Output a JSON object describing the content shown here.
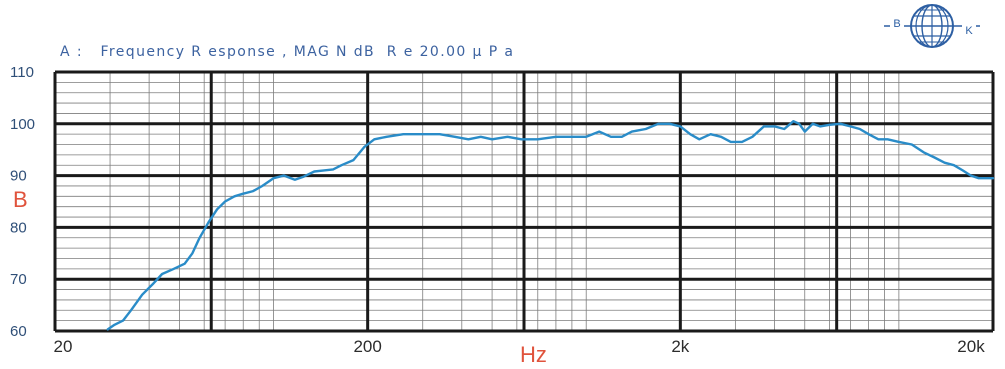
{
  "header": {
    "title": "A :   Frequency R esponse , MAG N dB  R e 20.00 µ P a"
  },
  "logo": {
    "left_letter": "B",
    "right_letter": "K"
  },
  "colors": {
    "curve": "#2a8cc8",
    "grid": "#7d7d7d",
    "major_grid": "#1a1a1a",
    "unit_label": "#e0533c",
    "title": "#3c62a0",
    "logo": "#2d5fa3"
  },
  "chart_data": {
    "type": "line",
    "title": "A :   Frequency R esponse , MAG N dB  R e 20.00 µ P a",
    "xlabel": "Hz",
    "ylabel": "B",
    "x_scale": "log",
    "xlim": [
      20,
      20000
    ],
    "ylim": [
      60,
      110
    ],
    "x_ticks": [
      20,
      200,
      2000,
      20000
    ],
    "x_tick_labels": [
      "20",
      "200",
      "2k",
      "20k"
    ],
    "y_ticks": [
      60,
      70,
      80,
      90,
      100,
      110
    ],
    "y_tick_labels": [
      "60",
      "70",
      "80",
      "90",
      "100",
      "110"
    ],
    "grid": true,
    "series": [
      {
        "x": [
          29.5,
          31,
          33,
          35,
          38,
          41,
          44,
          48,
          52,
          55,
          58,
          62,
          66,
          70,
          75,
          80,
          86,
          92,
          100,
          108,
          117,
          125,
          135,
          145,
          155,
          165,
          180,
          195,
          210,
          230,
          260,
          300,
          340,
          380,
          420,
          460,
          500,
          560,
          620,
          700,
          800,
          900,
          1000,
          1100,
          1200,
          1300,
          1400,
          1550,
          1700,
          1850,
          2000,
          2150,
          2300,
          2500,
          2700,
          2900,
          3150,
          3400,
          3700,
          4000,
          4300,
          4600,
          4800,
          5000,
          5300,
          5600,
          6000,
          6500,
          7000,
          7500,
          8000,
          8600,
          9200,
          10000,
          11000,
          12000,
          13000,
          14000,
          15000,
          16000,
          17000,
          18000,
          19000,
          20000
        ],
        "y": [
          60.3,
          61.2,
          62.0,
          64.0,
          67.0,
          69.0,
          71.0,
          72.0,
          73.0,
          75.0,
          78.0,
          81.0,
          83.5,
          85.0,
          86.0,
          86.5,
          87.0,
          88.0,
          89.5,
          90.0,
          89.2,
          89.8,
          90.8,
          91.0,
          91.2,
          92.0,
          93.0,
          95.5,
          97.0,
          97.5,
          98.0,
          98.0,
          98.0,
          97.5,
          97.0,
          97.5,
          97.0,
          97.5,
          97.0,
          97.0,
          97.5,
          97.5,
          97.5,
          98.5,
          97.5,
          97.5,
          98.5,
          99.0,
          100.0,
          100.0,
          99.5,
          98.0,
          97.0,
          98.0,
          97.5,
          96.5,
          96.5,
          97.5,
          99.5,
          99.5,
          99.0,
          100.5,
          100.0,
          98.5,
          100.0,
          99.5,
          99.8,
          100.0,
          99.5,
          99.0,
          98.0,
          97.0,
          97.0,
          96.5,
          96.0,
          94.5,
          93.5,
          92.5,
          92.0,
          91.0,
          90.0,
          89.5,
          89.5,
          89.5
        ]
      }
    ]
  }
}
